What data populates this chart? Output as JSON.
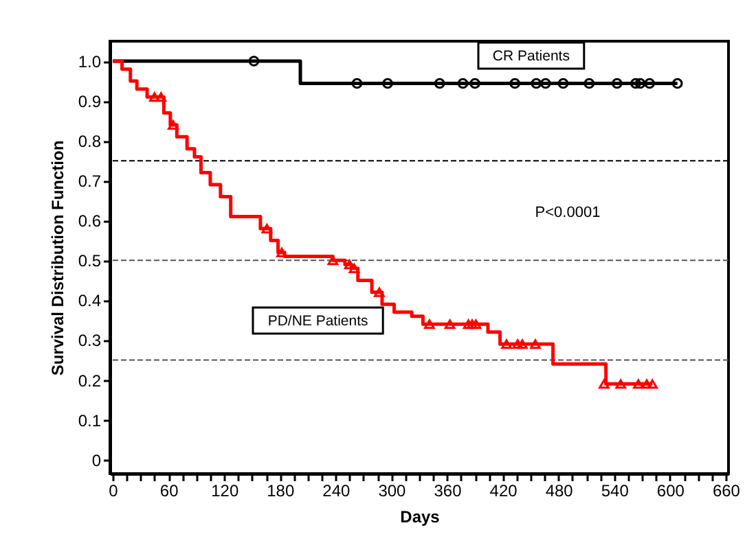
{
  "chart_data": {
    "type": "step",
    "xlabel": "Days",
    "ylabel": "Survival Distribution Function",
    "xlim": [
      -3,
      663
    ],
    "ylim": [
      -0.035,
      1.05
    ],
    "xticks": [
      0,
      {
        "value": 15,
        "label": null
      },
      {
        "value": 30,
        "label": null
      },
      {
        "value": 45,
        "label": null
      },
      60,
      {
        "value": 75,
        "label": null
      },
      {
        "value": 90,
        "label": null
      },
      {
        "value": 105,
        "label": null
      },
      120,
      {
        "value": 135,
        "label": null
      },
      {
        "value": 150,
        "label": null
      },
      {
        "value": 165,
        "label": null
      },
      180,
      {
        "value": 195,
        "label": null
      },
      {
        "value": 210,
        "label": null
      },
      {
        "value": 225,
        "label": null
      },
      240,
      {
        "value": 255,
        "label": null
      },
      {
        "value": 270,
        "label": null
      },
      {
        "value": 285,
        "label": null
      },
      300,
      {
        "value": 315,
        "label": null
      },
      {
        "value": 330,
        "label": null
      },
      {
        "value": 345,
        "label": null
      },
      360,
      {
        "value": 375,
        "label": null
      },
      {
        "value": 390,
        "label": null
      },
      {
        "value": 405,
        "label": null
      },
      420,
      {
        "value": 435,
        "label": null
      },
      {
        "value": 450,
        "label": null
      },
      {
        "value": 465,
        "label": null
      },
      480,
      {
        "value": 495,
        "label": null
      },
      {
        "value": 510,
        "label": null
      },
      {
        "value": 525,
        "label": null
      },
      540,
      {
        "value": 555,
        "label": null
      },
      {
        "value": 570,
        "label": null
      },
      {
        "value": 585,
        "label": null
      },
      600,
      {
        "value": 615,
        "label": null
      },
      {
        "value": 630,
        "label": null
      },
      {
        "value": 645,
        "label": null
      },
      660
    ],
    "yticks": [
      0,
      0.1,
      0.2,
      0.3,
      0.4,
      0.5,
      0.6,
      0.7,
      0.8,
      0.9,
      {
        "value": 1,
        "label": "1.0"
      }
    ],
    "grid": false,
    "series": [
      {
        "name": "CR Patients",
        "type": "step",
        "color": "#000000",
        "line_style": "solid",
        "x": [
          0,
          202,
          608
        ],
        "values": [
          1,
          0.944,
          0.944
        ]
      },
      {
        "type": "scatter",
        "marker": "circle",
        "color": "#000000",
        "x": [
          152,
          263,
          296,
          352,
          377,
          390,
          433,
          456,
          466,
          485,
          513,
          543,
          563,
          568,
          578,
          608
        ],
        "values": [
          1,
          0.944,
          0.944,
          0.944,
          0.944,
          0.944,
          0.944,
          0.944,
          0.944,
          0.944,
          0.944,
          0.944,
          0.944,
          0.944,
          0.944,
          0.944
        ]
      },
      {
        "name": "PD/NE Patients",
        "type": "step",
        "color": "#ff0000",
        "line_style": "solid",
        "x": [
          0,
          10,
          19,
          26,
          37,
          55,
          62,
          69,
          80,
          88,
          95,
          105,
          116,
          127,
          159,
          170,
          178,
          185,
          237,
          250,
          257,
          264,
          279,
          290,
          303,
          322,
          334,
          404,
          417,
          474,
          531,
          581
        ],
        "values": [
          1,
          0.98,
          0.95,
          0.93,
          0.91,
          0.87,
          0.84,
          0.81,
          0.78,
          0.76,
          0.72,
          0.69,
          0.66,
          0.61,
          0.58,
          0.55,
          0.52,
          0.51,
          0.5,
          0.49,
          0.48,
          0.45,
          0.42,
          0.39,
          0.37,
          0.36,
          0.34,
          0.32,
          0.29,
          0.24,
          0.19,
          0.19
        ]
      },
      {
        "type": "scatter",
        "marker": "triangle",
        "color": "#ff0000",
        "x": [
          45,
          52,
          65,
          166,
          182,
          237,
          255,
          260,
          287,
          341,
          363,
          383,
          387,
          391,
          424,
          436,
          441,
          455,
          529,
          547,
          566,
          575,
          581
        ],
        "values": [
          0.91,
          0.91,
          0.84,
          0.58,
          0.52,
          0.5,
          0.49,
          0.48,
          0.42,
          0.34,
          0.34,
          0.34,
          0.34,
          0.34,
          0.29,
          0.29,
          0.29,
          0.29,
          0.19,
          0.19,
          0.19,
          0.19,
          0.19
        ]
      }
    ],
    "ref_lines": [
      {
        "axis": "y",
        "value": 0.75,
        "color": "#000000",
        "line_style": "dashed"
      },
      {
        "axis": "y",
        "value": 0.5,
        "color": "#555555",
        "line_style": "dashed"
      },
      {
        "axis": "y",
        "value": 0.25,
        "color": "#555555",
        "line_style": "dashed"
      }
    ],
    "annotations": [
      "P<0.0001"
    ]
  }
}
